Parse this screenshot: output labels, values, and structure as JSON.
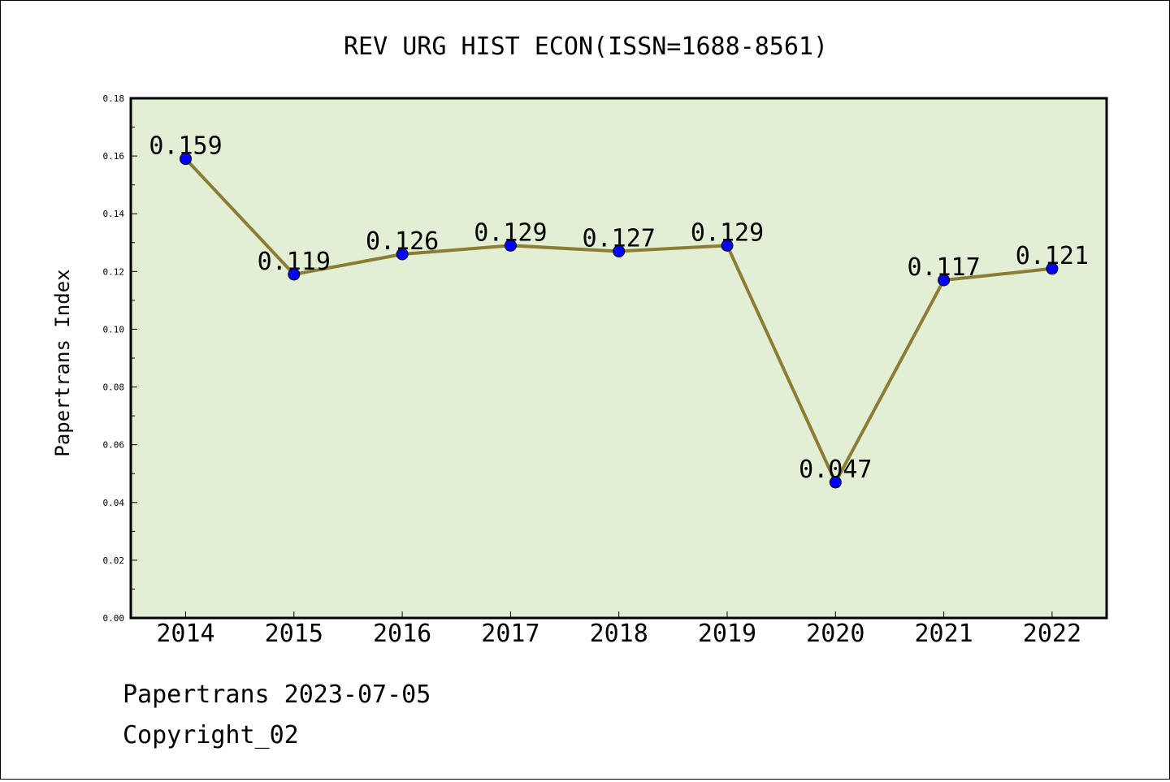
{
  "chart_data": {
    "type": "line",
    "title": "REV URG HIST ECON(ISSN=1688-8561)",
    "xlabel": "",
    "ylabel": "Papertrans Index",
    "categories": [
      "2014",
      "2015",
      "2016",
      "2017",
      "2018",
      "2019",
      "2020",
      "2021",
      "2022"
    ],
    "series": [
      {
        "values": [
          0.159,
          0.119,
          0.126,
          0.129,
          0.127,
          0.129,
          0.047,
          0.117,
          0.121
        ],
        "data_labels": [
          "0.159",
          "0.119",
          "0.126",
          "0.129",
          "0.127",
          "0.129",
          "0.047",
          "0.117",
          "0.121"
        ]
      }
    ],
    "ylim": [
      0,
      0.18
    ],
    "yticks": [
      0.0,
      0.02,
      0.04,
      0.06,
      0.08,
      0.1,
      0.12,
      0.14,
      0.16,
      0.18
    ],
    "ytick_labels": [
      "0.00",
      "0.02",
      "0.04",
      "0.06",
      "0.08",
      "0.10",
      "0.12",
      "0.14",
      "0.16",
      "0.18"
    ],
    "grid": false,
    "colors": {
      "plot_background": "#e2efd5",
      "line": "#8b7d33",
      "marker": "#0000ff"
    }
  },
  "footer": {
    "line1": "Papertrans 2023-07-05",
    "line2": "Copyright_02"
  }
}
